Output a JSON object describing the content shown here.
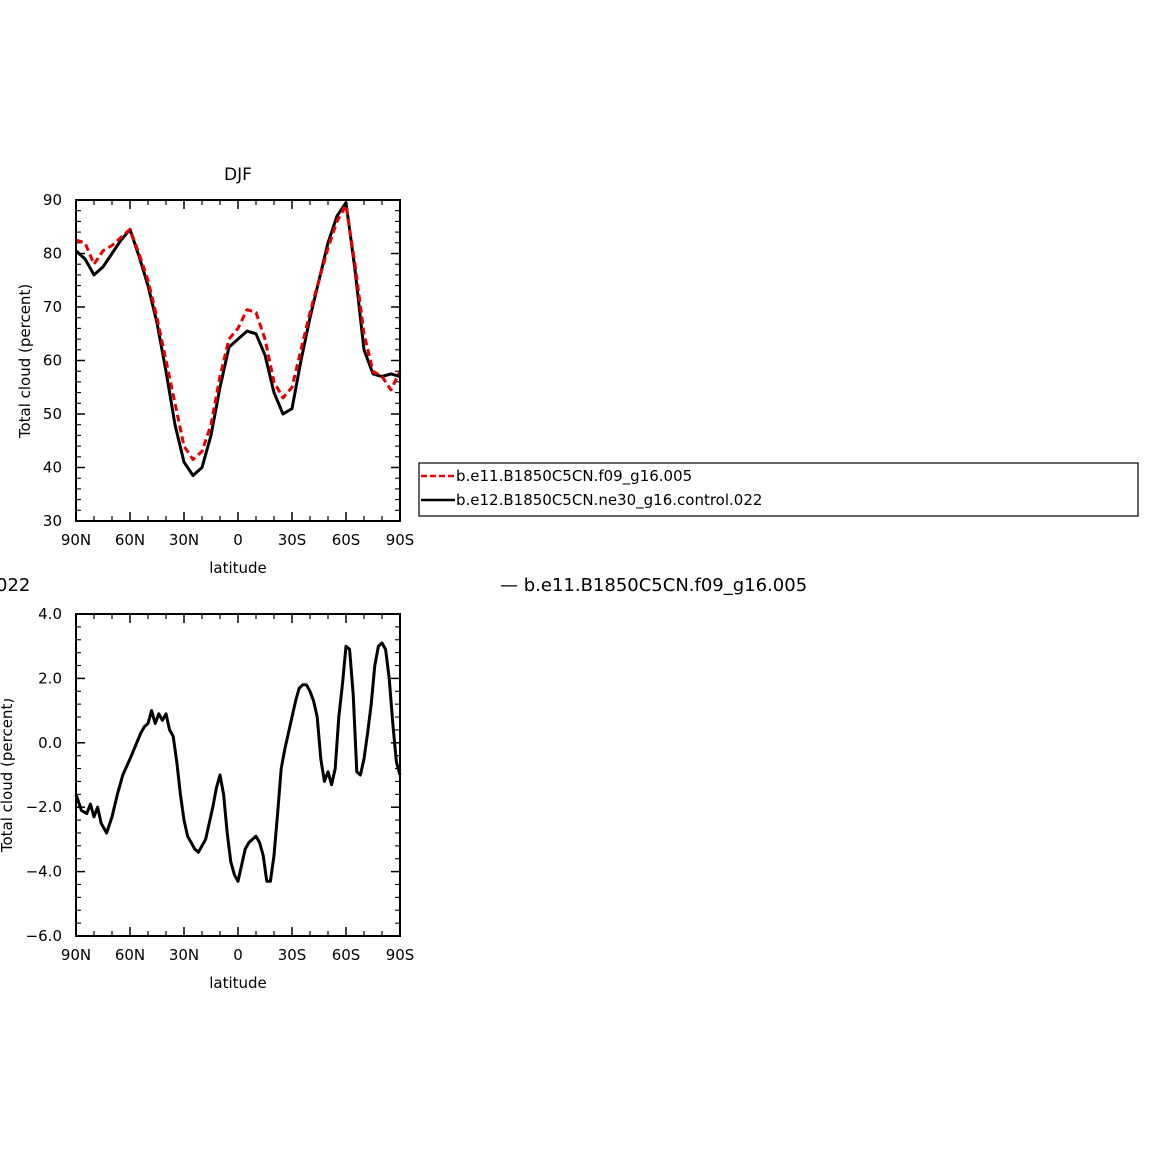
{
  "chart_data": [
    {
      "type": "line",
      "title": "DJF",
      "xlabel": "latitude",
      "ylabel": "Total cloud (percent)",
      "xticks": [
        "90N",
        "60N",
        "30N",
        "0",
        "30S",
        "60S",
        "90S"
      ],
      "yticks": [
        "30",
        "40",
        "50",
        "60",
        "70",
        "80",
        "90"
      ],
      "xlim": [
        90,
        -90
      ],
      "ylim": [
        30,
        90
      ],
      "legend_placement": "right",
      "series": [
        {
          "name": "b.e11.B1850C5CN.f09_g16.005",
          "color": "#e60000",
          "dash": "dashed",
          "x": [
            90,
            85,
            80,
            75,
            70,
            65,
            60,
            55,
            50,
            45,
            40,
            35,
            30,
            25,
            20,
            15,
            10,
            5,
            0,
            -5,
            -10,
            -15,
            -20,
            -25,
            -30,
            -35,
            -40,
            -45,
            -50,
            -55,
            -60,
            -65,
            -70,
            -75,
            -80,
            -85,
            -90
          ],
          "values": [
            82.5,
            82,
            78,
            80.5,
            81.5,
            83,
            84.5,
            80,
            75,
            68,
            60,
            52,
            44,
            41.5,
            43,
            48,
            57,
            64,
            66,
            69.5,
            69,
            64,
            56,
            53,
            55,
            62,
            69,
            75,
            81,
            86,
            89,
            78,
            65,
            58,
            57,
            54.5,
            58
          ]
        },
        {
          "name": "b.e12.B1850C5CN.ne30_g16.control.022",
          "color": "#000000",
          "dash": "solid",
          "x": [
            90,
            85,
            80,
            75,
            70,
            65,
            60,
            55,
            50,
            45,
            40,
            35,
            30,
            25,
            20,
            15,
            10,
            5,
            0,
            -5,
            -10,
            -15,
            -20,
            -25,
            -30,
            -35,
            -40,
            -45,
            -50,
            -55,
            -60,
            -65,
            -70,
            -75,
            -80,
            -85,
            -90
          ],
          "values": [
            80.5,
            79,
            76,
            77.5,
            80,
            82.5,
            84.5,
            79.5,
            74,
            67,
            58,
            48,
            41,
            38.5,
            40,
            46,
            55,
            62.5,
            64,
            65.5,
            65,
            61,
            54,
            50,
            51,
            60,
            68,
            75,
            82,
            87,
            89.5,
            77,
            62,
            57.5,
            57,
            57.5,
            57
          ]
        }
      ]
    },
    {
      "type": "line",
      "title": "",
      "xlabel": "latitude",
      "ylabel": "Total cloud (percent)",
      "xticks": [
        "90N",
        "60N",
        "30N",
        "0",
        "30S",
        "60S",
        "90S"
      ],
      "yticks": [
        "4.0",
        "2.0",
        "0.0",
        "−2.0",
        "−4.0",
        "−6.0"
      ],
      "xlim": [
        90,
        -90
      ],
      "ylim": [
        -6,
        4
      ],
      "series": [
        {
          "name": "",
          "color": "#000000",
          "dash": "solid",
          "x": [
            90,
            87,
            84,
            82,
            80,
            78,
            76,
            73,
            70,
            67,
            64,
            60,
            57,
            54,
            52,
            50,
            48,
            46,
            44,
            42,
            40,
            38,
            36,
            34,
            32,
            30,
            28,
            26,
            24,
            22,
            20,
            18,
            16,
            14,
            12,
            10,
            8,
            6,
            4,
            2,
            0,
            -2,
            -4,
            -6,
            -8,
            -10,
            -12,
            -14,
            -16,
            -18,
            -20,
            -22,
            -24,
            -26,
            -28,
            -30,
            -32,
            -34,
            -36,
            -38,
            -40,
            -42,
            -44,
            -46,
            -48,
            -50,
            -52,
            -54,
            -56,
            -58,
            -60,
            -62,
            -64,
            -66,
            -68,
            -70,
            -72,
            -74,
            -76,
            -78,
            -80,
            -82,
            -84,
            -86,
            -88,
            -90
          ],
          "values": [
            -1.6,
            -2.1,
            -2.2,
            -1.9,
            -2.3,
            -2.0,
            -2.5,
            -2.8,
            -2.3,
            -1.6,
            -1.0,
            -0.5,
            -0.1,
            0.3,
            0.5,
            0.6,
            1.0,
            0.6,
            0.9,
            0.7,
            0.9,
            0.4,
            0.2,
            -0.6,
            -1.6,
            -2.4,
            -2.9,
            -3.1,
            -3.3,
            -3.4,
            -3.2,
            -3.0,
            -2.5,
            -2.0,
            -1.4,
            -1.0,
            -1.6,
            -2.8,
            -3.7,
            -4.1,
            -4.3,
            -3.8,
            -3.3,
            -3.1,
            -3.0,
            -2.9,
            -3.1,
            -3.5,
            -4.3,
            -4.3,
            -3.5,
            -2.2,
            -0.8,
            -0.2,
            0.3,
            0.8,
            1.3,
            1.7,
            1.8,
            1.8,
            1.6,
            1.3,
            0.8,
            -0.5,
            -1.2,
            -0.9,
            -1.3,
            -0.8,
            0.8,
            1.8,
            3.0,
            2.9,
            1.5,
            -0.9,
            -1.0,
            -0.5,
            0.3,
            1.2,
            2.4,
            3.0,
            3.1,
            2.9,
            2.0,
            0.6,
            -0.6,
            -1.0
          ]
        }
      ]
    }
  ],
  "overlays": {
    "clipped_legend_text": "— b.e11.B1850C5CN.f09_g16.005",
    "clipped_left_text": "022"
  }
}
